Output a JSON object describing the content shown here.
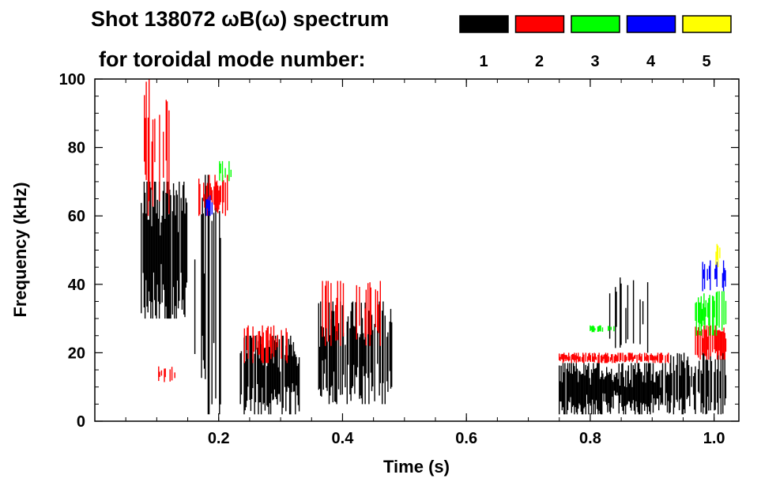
{
  "chart_data": {
    "type": "heatmap",
    "title_line1": "Shot 138072 ωB(ω) spectrum",
    "title_line2": "for toroidal mode number:",
    "xlabel": "Time (s)",
    "ylabel": "Frequency (kHz)",
    "xlim": [
      0,
      1.04
    ],
    "ylim": [
      0,
      100
    ],
    "xticks": [
      "0.2",
      "0.4",
      "0.6",
      "0.8",
      "1.0"
    ],
    "xtick_values": [
      0.2,
      0.4,
      0.6,
      0.8,
      1.0
    ],
    "yticks": [
      "0",
      "20",
      "40",
      "60",
      "80",
      "100"
    ],
    "ytick_values": [
      0,
      20,
      40,
      60,
      80,
      100
    ],
    "legend": [
      {
        "label": "1",
        "color": "#000000"
      },
      {
        "label": "2",
        "color": "#ff0000"
      },
      {
        "label": "3",
        "color": "#00ff00"
      },
      {
        "label": "4",
        "color": "#0000ff"
      },
      {
        "label": "5",
        "color": "#ffff00"
      }
    ],
    "features": [
      {
        "mode": 1,
        "t": [
          0.075,
          0.15
        ],
        "f": [
          30,
          70
        ],
        "density": 0.9
      },
      {
        "mode": 1,
        "t": [
          0.16,
          0.21
        ],
        "f": [
          2,
          72
        ],
        "density": 0.35
      },
      {
        "mode": 1,
        "t": [
          0.235,
          0.33
        ],
        "f": [
          2,
          25
        ],
        "density": 0.9
      },
      {
        "mode": 1,
        "t": [
          0.36,
          0.48
        ],
        "f": [
          5,
          35
        ],
        "density": 0.8
      },
      {
        "mode": 1,
        "t": [
          0.75,
          0.93
        ],
        "f": [
          2,
          17
        ],
        "density": 0.95
      },
      {
        "mode": 1,
        "t": [
          0.83,
          0.9
        ],
        "f": [
          20,
          42
        ],
        "density": 0.35
      },
      {
        "mode": 1,
        "t": [
          0.93,
          1.02
        ],
        "f": [
          2,
          20
        ],
        "density": 0.7
      },
      {
        "mode": 2,
        "t": [
          0.08,
          0.12
        ],
        "f": [
          60,
          100
        ],
        "density": 0.5
      },
      {
        "mode": 2,
        "t": [
          0.1,
          0.13
        ],
        "f": [
          11,
          16
        ],
        "density": 0.4
      },
      {
        "mode": 2,
        "t": [
          0.165,
          0.215
        ],
        "f": [
          60,
          72
        ],
        "density": 0.7
      },
      {
        "mode": 2,
        "t": [
          0.24,
          0.32
        ],
        "f": [
          17,
          28
        ],
        "density": 0.4
      },
      {
        "mode": 2,
        "t": [
          0.36,
          0.47
        ],
        "f": [
          22,
          41
        ],
        "density": 0.3
      },
      {
        "mode": 2,
        "t": [
          0.75,
          0.93
        ],
        "f": [
          17,
          20
        ],
        "density": 0.8
      },
      {
        "mode": 2,
        "t": [
          0.97,
          1.02
        ],
        "f": [
          18,
          28
        ],
        "density": 0.8
      },
      {
        "mode": 3,
        "t": [
          0.2,
          0.22
        ],
        "f": [
          70,
          76
        ],
        "density": 0.3
      },
      {
        "mode": 3,
        "t": [
          0.8,
          0.84
        ],
        "f": [
          26,
          28
        ],
        "density": 0.6
      },
      {
        "mode": 3,
        "t": [
          0.97,
          1.02
        ],
        "f": [
          25,
          38
        ],
        "density": 0.7
      },
      {
        "mode": 4,
        "t": [
          0.18,
          0.19
        ],
        "f": [
          60,
          66
        ],
        "density": 0.4
      },
      {
        "mode": 4,
        "t": [
          0.98,
          1.02
        ],
        "f": [
          38,
          47
        ],
        "density": 0.6
      },
      {
        "mode": 5,
        "t": [
          1.0,
          1.01
        ],
        "f": [
          45,
          52
        ],
        "density": 0.5
      }
    ]
  }
}
